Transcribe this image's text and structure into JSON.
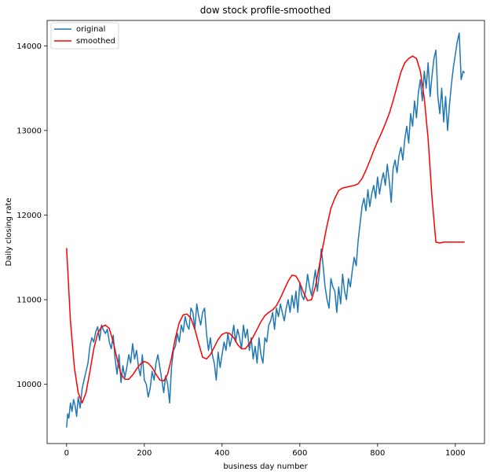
{
  "chart_data": {
    "type": "line",
    "title": "dow stock profile-smoothed",
    "xlabel": "business day number",
    "ylabel": "Daily closing rate",
    "xlim": [
      -50,
      1075
    ],
    "ylim": [
      9300,
      14300
    ],
    "xticks": [
      0,
      200,
      400,
      600,
      800,
      1000
    ],
    "yticks": [
      10000,
      11000,
      12000,
      13000,
      14000
    ],
    "grid": false,
    "legend": "top-left",
    "series": [
      {
        "name": "original",
        "color": "#1f77b4",
        "x": [
          0,
          3,
          6,
          10,
          14,
          18,
          22,
          26,
          30,
          35,
          40,
          45,
          50,
          55,
          60,
          65,
          70,
          75,
          80,
          85,
          90,
          95,
          100,
          105,
          110,
          115,
          120,
          125,
          130,
          135,
          140,
          145,
          150,
          155,
          160,
          165,
          170,
          175,
          180,
          185,
          190,
          195,
          200,
          205,
          210,
          215,
          220,
          225,
          230,
          235,
          240,
          245,
          250,
          255,
          260,
          265,
          270,
          275,
          280,
          285,
          290,
          295,
          300,
          305,
          310,
          315,
          320,
          325,
          330,
          335,
          340,
          345,
          350,
          355,
          360,
          365,
          370,
          375,
          380,
          385,
          390,
          395,
          400,
          405,
          410,
          415,
          420,
          425,
          430,
          435,
          440,
          445,
          450,
          455,
          460,
          465,
          470,
          475,
          480,
          485,
          490,
          495,
          500,
          505,
          510,
          515,
          520,
          525,
          530,
          535,
          540,
          545,
          550,
          555,
          560,
          565,
          570,
          575,
          580,
          585,
          590,
          595,
          600,
          605,
          610,
          615,
          620,
          625,
          630,
          635,
          640,
          645,
          650,
          655,
          660,
          665,
          670,
          675,
          680,
          685,
          690,
          695,
          700,
          705,
          710,
          715,
          720,
          725,
          730,
          735,
          740,
          745,
          750,
          755,
          760,
          765,
          770,
          775,
          780,
          785,
          790,
          795,
          800,
          805,
          810,
          815,
          820,
          825,
          830,
          835,
          840,
          845,
          850,
          855,
          860,
          865,
          870,
          875,
          880,
          885,
          890,
          895,
          900,
          905,
          910,
          915,
          920,
          925,
          930,
          935,
          940,
          945,
          950,
          955,
          960,
          965,
          970,
          975,
          980,
          985,
          990,
          995,
          1000,
          1005,
          1010,
          1015,
          1020,
          1024
        ],
        "y": [
          9490,
          9650,
          9600,
          9780,
          9680,
          9820,
          9750,
          9620,
          9850,
          9720,
          9950,
          10050,
          10150,
          10250,
          10450,
          10550,
          10500,
          10620,
          10680,
          10520,
          10700,
          10640,
          10600,
          10650,
          10500,
          10420,
          10580,
          10300,
          10120,
          10350,
          10020,
          10220,
          10080,
          10200,
          10350,
          10250,
          10480,
          10300,
          10400,
          10200,
          10100,
          10350,
          10050,
          10000,
          9850,
          9950,
          10150,
          10050,
          10250,
          10350,
          10200,
          10050,
          9900,
          10100,
          10000,
          9780,
          10200,
          10400,
          10450,
          10600,
          10500,
          10700,
          10620,
          10800,
          10700,
          10650,
          10900,
          10850,
          10650,
          10950,
          10800,
          10700,
          10850,
          10900,
          10600,
          10400,
          10550,
          10350,
          10250,
          10050,
          10380,
          10200,
          10350,
          10500,
          10400,
          10600,
          10450,
          10550,
          10700,
          10500,
          10650,
          10550,
          10420,
          10700,
          10550,
          10650,
          10400,
          10550,
          10300,
          10450,
          10250,
          10550,
          10350,
          10250,
          10550,
          10500,
          10700,
          10750,
          10850,
          10650,
          10900,
          10800,
          10950,
          10850,
          10750,
          10900,
          11000,
          10850,
          11050,
          10900,
          11100,
          10850,
          11200,
          11050,
          11000,
          11100,
          11300,
          11150,
          11050,
          11200,
          11350,
          11100,
          11300,
          11600,
          11400,
          11150,
          11000,
          10900,
          11250,
          11150,
          11100,
          10850,
          11150,
          10950,
          11300,
          11100,
          11000,
          11250,
          11150,
          11350,
          11500,
          11400,
          11700,
          11900,
          12100,
          12200,
          12050,
          12300,
          12100,
          12250,
          12350,
          12200,
          12450,
          12250,
          12400,
          12500,
          12350,
          12600,
          12400,
          12150,
          12550,
          12650,
          12500,
          12700,
          12800,
          12650,
          12900,
          13050,
          12850,
          13200,
          13050,
          13350,
          13150,
          13450,
          13600,
          13350,
          13700,
          13500,
          13800,
          13400,
          13650,
          13850,
          13950,
          13400,
          13200,
          13500,
          13100,
          13400,
          13000,
          13300,
          13550,
          13750,
          13900,
          14050,
          14150,
          13600,
          13700,
          13680
        ]
      },
      {
        "name": "smoothed",
        "color": "#ff0000",
        "x": [
          0,
          10,
          20,
          30,
          40,
          50,
          60,
          70,
          80,
          90,
          100,
          110,
          120,
          130,
          140,
          150,
          160,
          170,
          180,
          190,
          200,
          210,
          220,
          230,
          240,
          250,
          260,
          270,
          280,
          290,
          300,
          310,
          320,
          330,
          340,
          350,
          360,
          370,
          380,
          390,
          400,
          410,
          420,
          430,
          440,
          450,
          460,
          470,
          480,
          490,
          500,
          510,
          520,
          530,
          540,
          550,
          560,
          570,
          580,
          590,
          600,
          610,
          620,
          630,
          640,
          650,
          660,
          670,
          680,
          690,
          700,
          710,
          720,
          730,
          740,
          750,
          760,
          770,
          780,
          790,
          800,
          810,
          820,
          830,
          840,
          850,
          860,
          870,
          880,
          890,
          900,
          910,
          920,
          930,
          940,
          950,
          960,
          970,
          980,
          990,
          1000,
          1010,
          1020,
          1024
        ],
        "y": [
          11610,
          10750,
          10200,
          9900,
          9780,
          9900,
          10150,
          10420,
          10600,
          10680,
          10700,
          10660,
          10500,
          10300,
          10120,
          10060,
          10060,
          10110,
          10180,
          10240,
          10270,
          10250,
          10200,
          10120,
          10050,
          10040,
          10120,
          10310,
          10550,
          10730,
          10820,
          10830,
          10780,
          10650,
          10480,
          10320,
          10300,
          10350,
          10440,
          10530,
          10590,
          10610,
          10600,
          10550,
          10470,
          10420,
          10420,
          10480,
          10560,
          10650,
          10740,
          10810,
          10850,
          10880,
          10930,
          11020,
          11120,
          11220,
          11290,
          11280,
          11200,
          11080,
          10990,
          11000,
          11150,
          11400,
          11640,
          11880,
          12080,
          12200,
          12290,
          12320,
          12330,
          12340,
          12350,
          12370,
          12430,
          12530,
          12640,
          12760,
          12870,
          12970,
          13080,
          13200,
          13350,
          13520,
          13690,
          13800,
          13850,
          13880,
          13850,
          13700,
          13380,
          12900,
          12200,
          11680,
          11670,
          11680,
          11680,
          11680,
          11680,
          11680,
          11680,
          11680
        ]
      }
    ]
  }
}
